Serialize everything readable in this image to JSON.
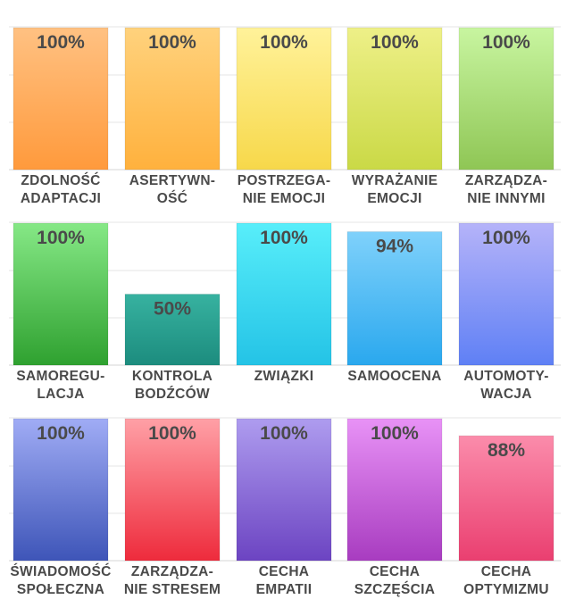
{
  "chart_data": {
    "type": "bar",
    "ylim": [
      0,
      100
    ],
    "value_suffix": "%",
    "rows": [
      {
        "bars": [
          {
            "label": [
              "ZDOLNOŚĆ",
              "ADAPTACJI"
            ],
            "value": 100,
            "color_top": "#ffc182",
            "color_bottom": "#ff9a3c"
          },
          {
            "label": [
              "ASERTYWN-",
              "OŚĆ"
            ],
            "value": 100,
            "color_top": "#ffd27d",
            "color_bottom": "#ffb13d"
          },
          {
            "label": [
              "POSTRZEGA-",
              "NIE EMOCJI"
            ],
            "value": 100,
            "color_top": "#fff29a",
            "color_bottom": "#f7d84a"
          },
          {
            "label": [
              "WYRAŻANIE",
              "EMOCJI"
            ],
            "value": 100,
            "color_top": "#eef088",
            "color_bottom": "#cad946"
          },
          {
            "label": [
              "ZARZĄDZA-",
              "NIE INNYMI"
            ],
            "value": 100,
            "color_top": "#c8f5a0",
            "color_bottom": "#8fc655"
          }
        ]
      },
      {
        "bars": [
          {
            "label": [
              "SAMOREGU-",
              "LACJA"
            ],
            "value": 100,
            "color_top": "#86e886",
            "color_bottom": "#2fa130"
          },
          {
            "label": [
              "KONTROLA",
              "BODŹCÓW"
            ],
            "value": 50,
            "color_top": "#37b2a0",
            "color_bottom": "#1c8c7e"
          },
          {
            "label": [
              "ZWIĄZKI"
            ],
            "value": 100,
            "color_top": "#58eefa",
            "color_bottom": "#24c3e6"
          },
          {
            "label": [
              "SAMOOCENA"
            ],
            "value": 94,
            "color_top": "#7fd1fb",
            "color_bottom": "#2aa8ee"
          },
          {
            "label": [
              "AUTOMOTY-",
              "WACJA"
            ],
            "value": 100,
            "color_top": "#b5b3f9",
            "color_bottom": "#5f80f5"
          }
        ]
      },
      {
        "bars": [
          {
            "label": [
              "ŚWIADOMOŚĆ",
              "SPOŁECZNA"
            ],
            "value": 100,
            "color_top": "#a0acf5",
            "color_bottom": "#3e55b8"
          },
          {
            "label": [
              "ZARZĄDZA-",
              "NIE STRESEM"
            ],
            "value": 100,
            "color_top": "#ffa0a6",
            "color_bottom": "#ee2b3c"
          },
          {
            "label": [
              "CECHA",
              "EMPATII"
            ],
            "value": 100,
            "color_top": "#ae9cef",
            "color_bottom": "#6c44c2"
          },
          {
            "label": [
              "CECHA",
              "SZCZĘŚCIA"
            ],
            "value": 100,
            "color_top": "#e892f6",
            "color_bottom": "#a83cc0"
          },
          {
            "label": [
              "CECHA",
              "OPTYMIZMU"
            ],
            "value": 88,
            "color_top": "#fb8cab",
            "color_bottom": "#ea3f70"
          }
        ]
      }
    ]
  }
}
